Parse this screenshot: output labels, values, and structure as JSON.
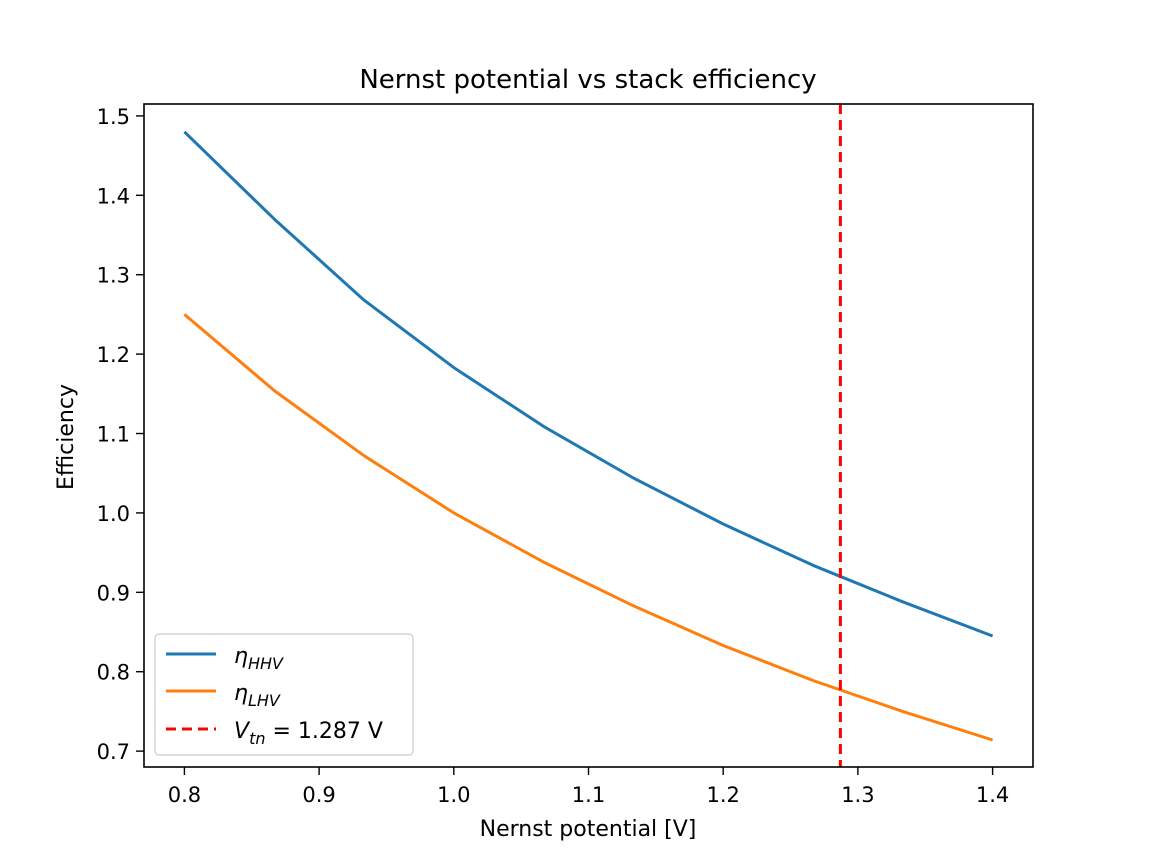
{
  "chart_data": {
    "type": "line",
    "title": "Nernst potential vs stack efficiency",
    "xlabel": "Nernst potential [V]",
    "ylabel": "Efficiency",
    "xlim": [
      0.77,
      1.43
    ],
    "ylim": [
      0.68,
      1.515
    ],
    "xticks": [
      0.8,
      0.9,
      1.0,
      1.1,
      1.2,
      1.3,
      1.4
    ],
    "xtick_labels": [
      "0.8",
      "0.9",
      "1.0",
      "1.1",
      "1.2",
      "1.3",
      "1.4"
    ],
    "yticks": [
      0.7,
      0.8,
      0.9,
      1.0,
      1.1,
      1.2,
      1.3,
      1.4,
      1.5
    ],
    "ytick_labels": [
      "0.7",
      "0.8",
      "0.9",
      "1.0",
      "1.1",
      "1.2",
      "1.3",
      "1.4",
      "1.5"
    ],
    "grid": false,
    "legend_position": "lower-left",
    "x": [
      0.8,
      0.8667,
      0.9333,
      1.0,
      1.0667,
      1.1333,
      1.2,
      1.2667,
      1.3333,
      1.4
    ],
    "series": [
      {
        "name_main": "η",
        "name_sub": "HHV",
        "color": "#1f77b4",
        "values": [
          1.48,
          1.37,
          1.268,
          1.183,
          1.109,
          1.044,
          0.986,
          0.934,
          0.888,
          0.845
        ]
      },
      {
        "name_main": "η",
        "name_sub": "LHV",
        "color": "#ff7f0e",
        "values": [
          1.25,
          1.154,
          1.072,
          1.0,
          0.938,
          0.883,
          0.833,
          0.789,
          0.75,
          0.714
        ]
      }
    ],
    "vline": {
      "x": 1.287,
      "color": "#ff0000",
      "style": "dashed",
      "label_main": "V",
      "label_sub": "tn",
      "label_rest": " = 1.287 V"
    }
  }
}
